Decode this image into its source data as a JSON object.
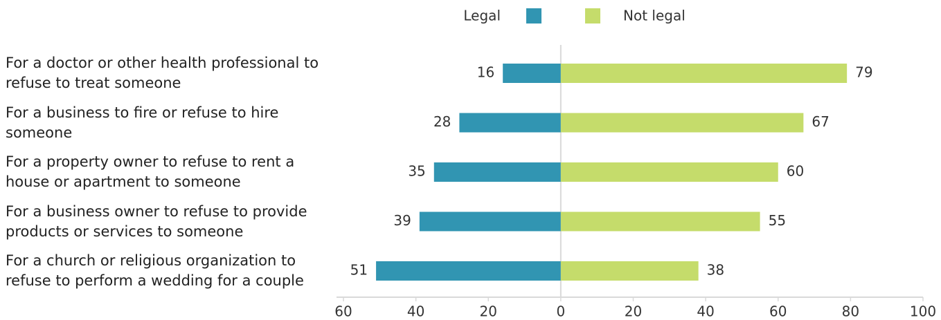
{
  "chart_data": {
    "type": "diverging_bar",
    "categories": [
      "For a doctor or other health professional to refuse to treat someone",
      "For a business to fire or refuse to hire someone",
      "For a property owner to refuse to rent a house or apartment to someone",
      "For a business owner to refuse to provide products or services to someone",
      "For a church or religious organization to refuse to perform a wedding for a couple"
    ],
    "series": [
      {
        "name": "Legal",
        "color": "#3195b2",
        "values": [
          -16,
          -28,
          -35,
          -39,
          -51
        ],
        "value_labels": [
          "16",
          "28",
          "35",
          "39",
          "51"
        ]
      },
      {
        "name": "Not legal",
        "color": "#c5dc6b",
        "values": [
          79,
          67,
          60,
          55,
          38
        ]
      }
    ],
    "xlim": [
      -60,
      100
    ],
    "xticks": [
      {
        "value": -60,
        "label": "60"
      },
      {
        "value": -40,
        "label": "40"
      },
      {
        "value": -20,
        "label": "20"
      },
      0,
      20,
      40,
      60,
      80,
      100
    ],
    "legend": "top"
  }
}
